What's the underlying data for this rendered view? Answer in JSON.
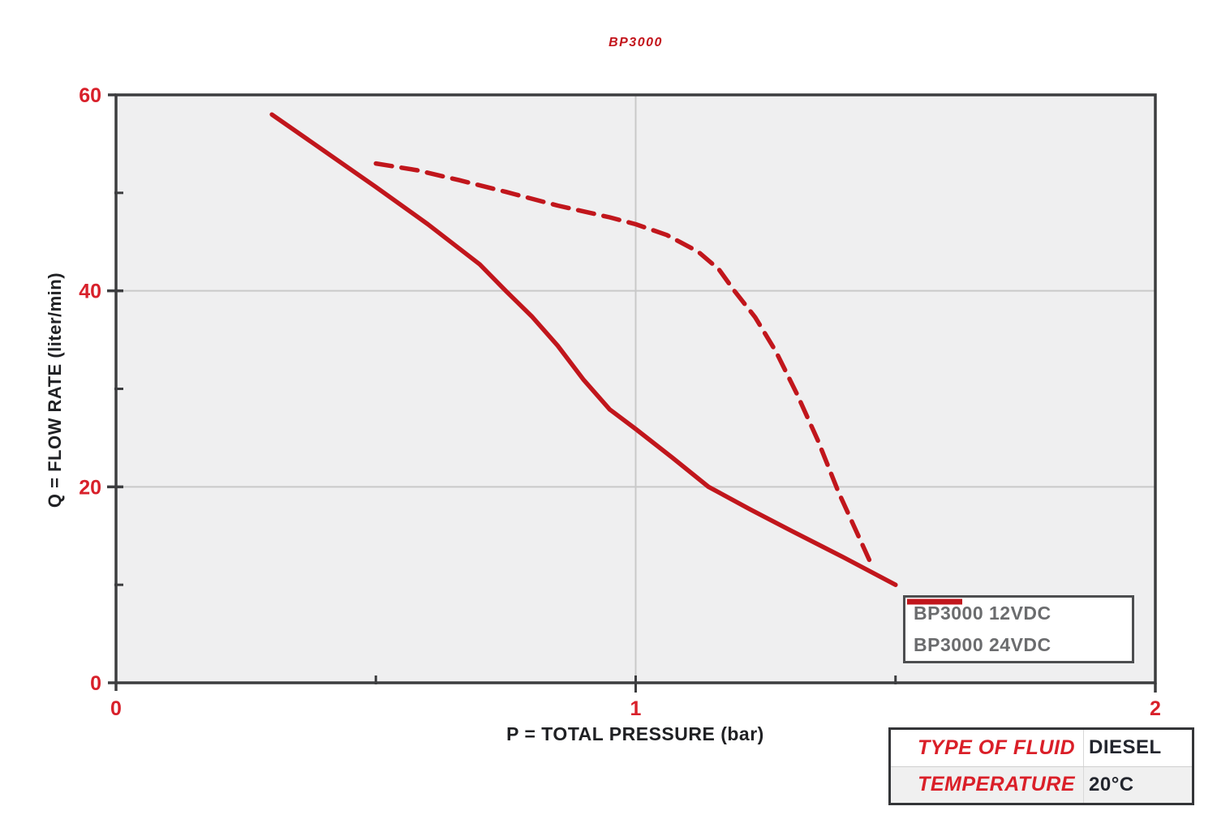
{
  "chart_data": {
    "type": "line",
    "title": "BP3000",
    "xlabel": "P = TOTAL PRESSURE (bar)",
    "ylabel": "Q = FLOW RATE (liter/min)",
    "xlim": [
      0,
      2
    ],
    "ylim": [
      0,
      60
    ],
    "x_ticks_major": [
      0,
      1,
      2
    ],
    "x_tick_labels": [
      "0",
      "1",
      "2"
    ],
    "x_ticks_minor": [
      0.5,
      1.5
    ],
    "y_ticks_major": [
      0,
      20,
      40,
      60
    ],
    "y_tick_labels": [
      "0",
      "20",
      "40",
      "60"
    ],
    "y_ticks_minor": [
      10,
      30,
      50
    ],
    "grid_x": [
      1
    ],
    "grid_y": [
      20,
      40
    ],
    "legend_position": "inside-bottom-right",
    "series": [
      {
        "name": "BP3000 12VDC",
        "style": "dashed",
        "color": "#c1161c",
        "points": [
          [
            0.5,
            53
          ],
          [
            0.58,
            52.3
          ],
          [
            0.66,
            51.3
          ],
          [
            0.75,
            50.1
          ],
          [
            0.85,
            48.7
          ],
          [
            0.95,
            47.5
          ],
          [
            1.0,
            46.8
          ],
          [
            1.06,
            45.7
          ],
          [
            1.12,
            44.0
          ],
          [
            1.16,
            42.2
          ],
          [
            1.19,
            40
          ],
          [
            1.23,
            37.3
          ],
          [
            1.27,
            33.8
          ],
          [
            1.31,
            29.5
          ],
          [
            1.35,
            24.8
          ],
          [
            1.39,
            19.5
          ],
          [
            1.42,
            16
          ],
          [
            1.45,
            12.5
          ]
        ]
      },
      {
        "name": "BP3000 24VDC",
        "style": "solid",
        "color": "#c1161c",
        "points": [
          [
            0.3,
            58
          ],
          [
            0.4,
            54.3
          ],
          [
            0.5,
            50.6
          ],
          [
            0.6,
            46.8
          ],
          [
            0.7,
            42.7
          ],
          [
            0.75,
            40
          ],
          [
            0.8,
            37.4
          ],
          [
            0.85,
            34.4
          ],
          [
            0.9,
            30.9
          ],
          [
            0.95,
            27.9
          ],
          [
            1.0,
            25.9
          ],
          [
            1.07,
            23.0
          ],
          [
            1.14,
            20
          ],
          [
            1.22,
            17.7
          ],
          [
            1.3,
            15.5
          ],
          [
            1.4,
            12.8
          ],
          [
            1.5,
            10
          ]
        ]
      }
    ]
  },
  "colors": {
    "curve_red": "#c1161c",
    "tick_label_red": "#d8202a",
    "title_red": "#c3151c",
    "axis_dark": "#3c3d3f",
    "grid_gray": "#c9c9c9",
    "plot_background": "#efeff0",
    "legend_text_gray": "#6b6c6e",
    "table_label_red": "#da1f28",
    "table_value_dark": "#23262e"
  },
  "legend": {
    "entries": [
      {
        "label": "BP3000 12VDC",
        "swatch": "dashed-red-line"
      },
      {
        "label": "BP3000 24VDC",
        "swatch": "solid-red-line"
      }
    ]
  },
  "info_table": {
    "rows": [
      {
        "label": "TYPE OF FLUID",
        "value": "DIESEL"
      },
      {
        "label": "TEMPERATURE",
        "value": "20°C"
      }
    ]
  }
}
